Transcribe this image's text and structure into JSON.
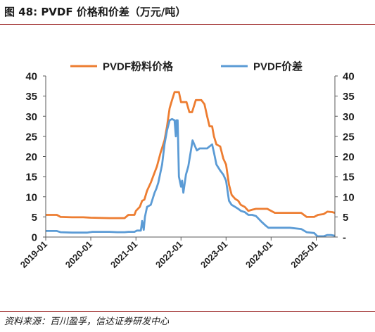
{
  "figure": {
    "title": "图 48:  PVDF 价格和价差（万元/吨）",
    "source": "资料来源：百川盈孚，信达证券研发中心"
  },
  "chart_data": {
    "type": "line",
    "title": "",
    "xlabel": "",
    "ylabel": "",
    "x_axis": {
      "type": "date",
      "ticks": [
        "2019-01",
        "2020-01",
        "2021-01",
        "2022-01",
        "2023-01",
        "2024-01",
        "2025-01"
      ],
      "range": [
        "2019-01-01",
        "2025-06-01"
      ]
    },
    "y_left": {
      "ticks": [
        0,
        5,
        10,
        15,
        20,
        25,
        30,
        35,
        40
      ],
      "ylim": [
        0,
        40
      ]
    },
    "y_right": {
      "ticks": [
        "-",
        5,
        10,
        15,
        20,
        25,
        30,
        35,
        40
      ],
      "ylim": [
        0,
        40
      ]
    },
    "legend_position": "top",
    "grid": false,
    "series": [
      {
        "name": "PVDF粉料价格",
        "color": "#ED7D31",
        "points": [
          [
            "2019-01-01",
            5.5
          ],
          [
            "2019-04-01",
            5.5
          ],
          [
            "2019-05-01",
            5.0
          ],
          [
            "2019-08-01",
            4.9
          ],
          [
            "2019-11-01",
            4.9
          ],
          [
            "2020-01-01",
            4.8
          ],
          [
            "2020-06-01",
            4.7
          ],
          [
            "2020-10-01",
            4.7
          ],
          [
            "2020-11-01",
            5.5
          ],
          [
            "2020-12-20",
            5.5
          ],
          [
            "2021-01-01",
            6.5
          ],
          [
            "2021-02-01",
            7.5
          ],
          [
            "2021-02-20",
            9.0
          ],
          [
            "2021-03-10",
            9.3
          ],
          [
            "2021-04-01",
            11.5
          ],
          [
            "2021-05-01",
            13.5
          ],
          [
            "2021-06-01",
            16.0
          ],
          [
            "2021-06-20",
            17.5
          ],
          [
            "2021-07-20",
            21.0
          ],
          [
            "2021-08-20",
            24.0
          ],
          [
            "2021-09-10",
            27.5
          ],
          [
            "2021-10-01",
            32.0
          ],
          [
            "2021-10-20",
            34.0
          ],
          [
            "2021-11-10",
            36.0
          ],
          [
            "2021-12-15",
            36.0
          ],
          [
            "2022-01-01",
            33.5
          ],
          [
            "2022-02-15",
            33.5
          ],
          [
            "2022-03-10",
            31.0
          ],
          [
            "2022-04-01",
            31.0
          ],
          [
            "2022-05-01",
            34.0
          ],
          [
            "2022-06-15",
            34.0
          ],
          [
            "2022-07-10",
            33.0
          ],
          [
            "2022-08-01",
            30.0
          ],
          [
            "2022-08-20",
            27.5
          ],
          [
            "2022-09-10",
            27.5
          ],
          [
            "2022-09-25",
            25.0
          ],
          [
            "2022-10-15",
            23.0
          ],
          [
            "2022-11-15",
            22.5
          ],
          [
            "2022-12-10",
            19.5
          ],
          [
            "2023-01-01",
            18.0
          ],
          [
            "2023-01-25",
            13.0
          ],
          [
            "2023-02-15",
            10.5
          ],
          [
            "2023-03-15",
            9.5
          ],
          [
            "2023-04-10",
            9.0
          ],
          [
            "2023-05-01",
            8.0
          ],
          [
            "2023-06-01",
            7.5
          ],
          [
            "2023-07-01",
            6.5
          ],
          [
            "2023-08-01",
            6.8
          ],
          [
            "2023-09-01",
            7.0
          ],
          [
            "2023-12-01",
            7.0
          ],
          [
            "2024-02-01",
            6.0
          ],
          [
            "2024-06-01",
            6.0
          ],
          [
            "2024-09-01",
            6.0
          ],
          [
            "2024-10-15",
            5.0
          ],
          [
            "2024-12-15",
            5.0
          ],
          [
            "2025-01-15",
            5.5
          ],
          [
            "2025-03-01",
            5.7
          ],
          [
            "2025-04-01",
            6.3
          ],
          [
            "2025-05-10",
            6.2
          ],
          [
            "2025-06-01",
            6.0
          ]
        ]
      },
      {
        "name": "PVDF价差",
        "color": "#5B9BD5",
        "points": [
          [
            "2019-01-01",
            1.5
          ],
          [
            "2019-04-01",
            1.5
          ],
          [
            "2019-05-01",
            1.2
          ],
          [
            "2019-08-01",
            1.1
          ],
          [
            "2019-12-01",
            1.1
          ],
          [
            "2020-01-15",
            1.3
          ],
          [
            "2020-06-01",
            1.3
          ],
          [
            "2020-08-01",
            1.2
          ],
          [
            "2020-10-01",
            1.2
          ],
          [
            "2020-11-01",
            1.3
          ],
          [
            "2020-12-20",
            1.3
          ],
          [
            "2021-01-10",
            1.6
          ],
          [
            "2021-02-10",
            1.6
          ],
          [
            "2021-02-20",
            4.0
          ],
          [
            "2021-03-05",
            1.8
          ],
          [
            "2021-03-15",
            5.0
          ],
          [
            "2021-04-01",
            7.5
          ],
          [
            "2021-05-01",
            8.0
          ],
          [
            "2021-06-01",
            11.0
          ],
          [
            "2021-06-15",
            12.0
          ],
          [
            "2021-07-01",
            13.5
          ],
          [
            "2021-08-01",
            18.0
          ],
          [
            "2021-08-20",
            23.0
          ],
          [
            "2021-09-10",
            26.5
          ],
          [
            "2021-10-01",
            29.0
          ],
          [
            "2021-10-20",
            29.3
          ],
          [
            "2021-11-10",
            29.0
          ],
          [
            "2021-11-20",
            25.0
          ],
          [
            "2021-11-25",
            29.0
          ],
          [
            "2021-12-05",
            29.0
          ],
          [
            "2021-12-15",
            15.0
          ],
          [
            "2022-01-01",
            12.5
          ],
          [
            "2022-01-10",
            14.0
          ],
          [
            "2022-01-20",
            11.0
          ],
          [
            "2022-02-10",
            15.5
          ],
          [
            "2022-03-01",
            17.5
          ],
          [
            "2022-03-20",
            21.0
          ],
          [
            "2022-04-05",
            24.0
          ],
          [
            "2022-04-25",
            22.5
          ],
          [
            "2022-05-10",
            21.5
          ],
          [
            "2022-06-01",
            22.0
          ],
          [
            "2022-08-01",
            22.0
          ],
          [
            "2022-08-20",
            22.5
          ],
          [
            "2022-09-10",
            23.0
          ],
          [
            "2022-09-25",
            21.0
          ],
          [
            "2022-10-15",
            18.0
          ],
          [
            "2022-11-15",
            16.5
          ],
          [
            "2022-12-10",
            15.5
          ],
          [
            "2023-01-01",
            14.0
          ],
          [
            "2023-01-25",
            9.0
          ],
          [
            "2023-02-15",
            8.0
          ],
          [
            "2023-03-15",
            7.5
          ],
          [
            "2023-04-10",
            7.0
          ],
          [
            "2023-05-01",
            6.5
          ],
          [
            "2023-06-01",
            6.2
          ],
          [
            "2023-07-01",
            5.5
          ],
          [
            "2023-08-01",
            5.5
          ],
          [
            "2023-09-01",
            5.2
          ],
          [
            "2023-10-15",
            3.8
          ],
          [
            "2023-11-20",
            2.8
          ],
          [
            "2023-12-10",
            2.3
          ],
          [
            "2024-02-01",
            2.3
          ],
          [
            "2024-06-01",
            2.3
          ],
          [
            "2024-09-01",
            2.0
          ],
          [
            "2024-10-15",
            1.2
          ],
          [
            "2024-12-15",
            1.0
          ],
          [
            "2025-01-10",
            0.2
          ],
          [
            "2025-03-01",
            0.2
          ],
          [
            "2025-04-01",
            0.5
          ],
          [
            "2025-05-01",
            0.5
          ],
          [
            "2025-06-01",
            0.3
          ]
        ]
      }
    ]
  }
}
